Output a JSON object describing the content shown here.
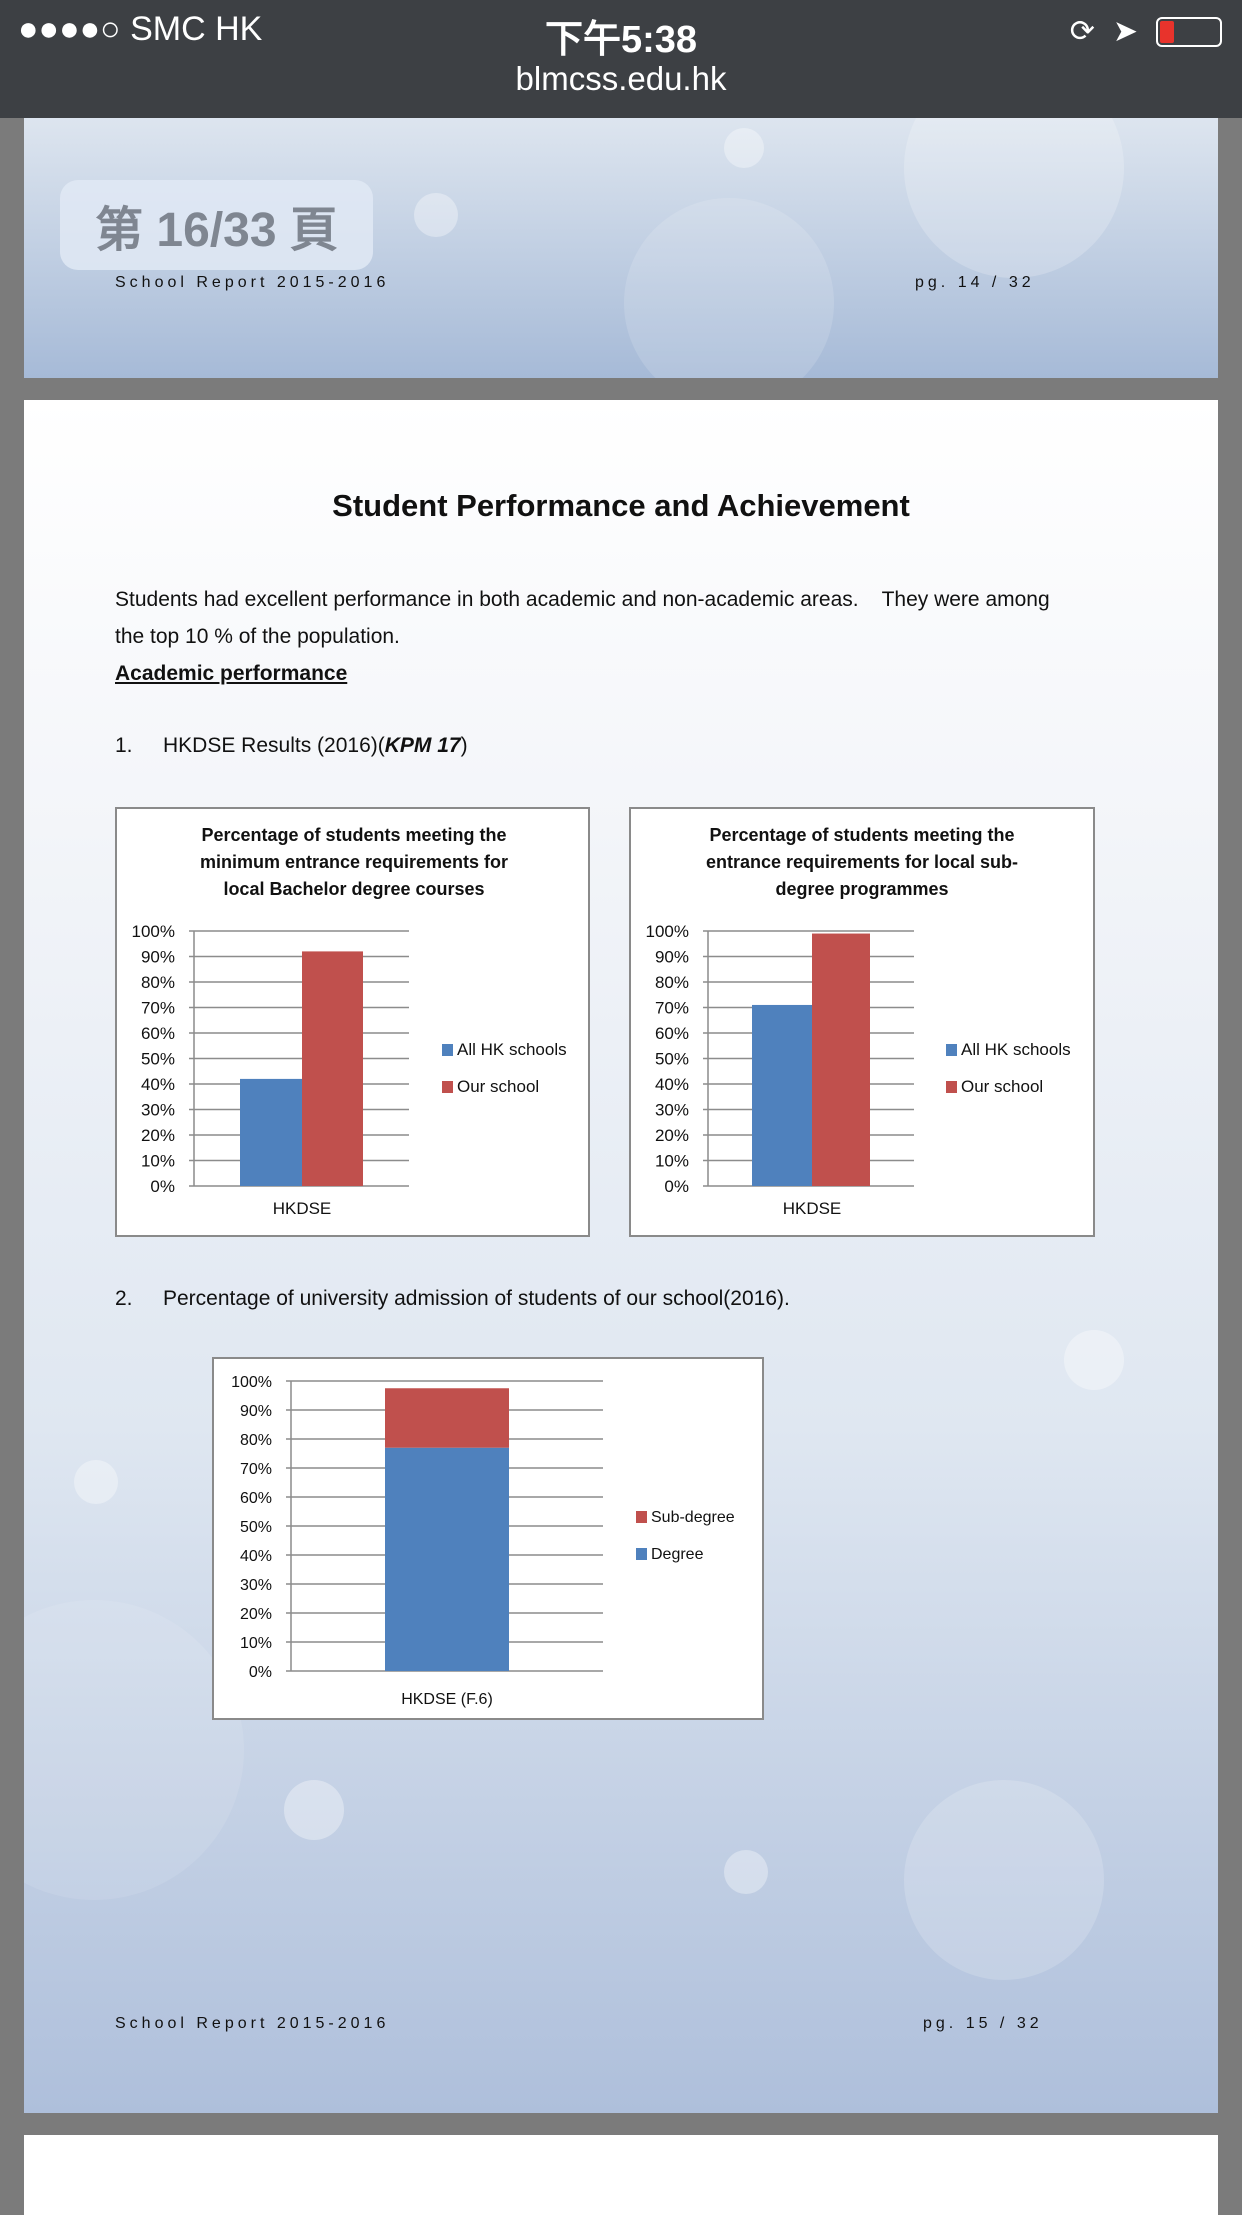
{
  "status_bar": {
    "carrier": "●●●●○ SMC HK",
    "time": "下午5:38",
    "url": "blmcss.edu.hk",
    "icons": [
      "wifi-icon",
      "rotation-lock-icon",
      "location-arrow-icon",
      "battery-low-icon"
    ]
  },
  "page_indicator": "第 16/33 頁",
  "page14_footer": {
    "left": "School Report 2015-2016",
    "right": "pg. 14 / 32"
  },
  "page15": {
    "title": "Student Performance and Achievement",
    "intro_line1": "Students had excellent performance in both academic and non-academic areas.    They were among",
    "intro_line2": "the top 10 % of the population.",
    "section_heading": "Academic performance",
    "item1_num": "1.",
    "item1_text": "HKDSE Results (2016)(",
    "item1_kpm": "KPM 17",
    "item1_close": ")",
    "item2_num": "2.",
    "item2_text": "Percentage of university admission of students of our school(2016).",
    "footer": {
      "left": "School Report 2015-2016",
      "right": "pg. 15 / 32"
    }
  },
  "colors": {
    "blue": "#4f81bd",
    "red": "#c0504d"
  },
  "chart_data": [
    {
      "type": "bar",
      "title_lines": [
        "Percentage of students meeting the",
        "minimum entrance requirements for",
        "local Bachelor degree courses"
      ],
      "categories": [
        "HKDSE"
      ],
      "series": [
        {
          "name": "All HK schools",
          "values": [
            42
          ]
        },
        {
          "name": "Our school",
          "values": [
            92
          ]
        }
      ],
      "ylim": [
        0,
        100
      ],
      "yticks": [
        "0%",
        "10%",
        "20%",
        "30%",
        "40%",
        "50%",
        "60%",
        "70%",
        "80%",
        "90%",
        "100%"
      ],
      "legend": "right",
      "grid": true
    },
    {
      "type": "bar",
      "title_lines": [
        "Percentage of students meeting the",
        "entrance requirements for local sub-",
        "degree programmes"
      ],
      "categories": [
        "HKDSE"
      ],
      "series": [
        {
          "name": "All HK schools",
          "values": [
            71
          ]
        },
        {
          "name": "Our school",
          "values": [
            99
          ]
        }
      ],
      "ylim": [
        0,
        100
      ],
      "yticks": [
        "0%",
        "10%",
        "20%",
        "30%",
        "40%",
        "50%",
        "60%",
        "70%",
        "80%",
        "90%",
        "100%"
      ],
      "legend": "right",
      "grid": true
    },
    {
      "type": "bar",
      "stacked": true,
      "title_lines": [],
      "categories": [
        "HKDSE (F.6)"
      ],
      "series": [
        {
          "name": "Degree",
          "values": [
            77
          ]
        },
        {
          "name": "Sub-degree",
          "values": [
            20.5
          ]
        }
      ],
      "legend_order": [
        "Sub-degree",
        "Degree"
      ],
      "ylim": [
        0,
        100
      ],
      "yticks": [
        "0%",
        "10%",
        "20%",
        "30%",
        "40%",
        "50%",
        "60%",
        "70%",
        "80%",
        "90%",
        "100%"
      ],
      "legend": "right",
      "grid": true
    }
  ]
}
